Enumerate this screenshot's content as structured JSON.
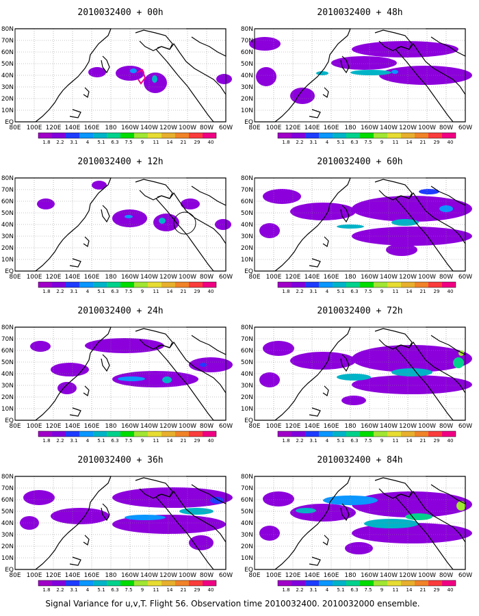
{
  "figure": {
    "caption": "Signal Variance for u,v,T. Flight 56. Observation time 2010032400. 2010032000 ensemble."
  },
  "colorbar": {
    "labels": [
      "1.8",
      "2.2",
      "3.1",
      "4",
      "5.1",
      "6.3",
      "7.5",
      "9",
      "11",
      "14",
      "21",
      "29",
      "40"
    ],
    "colors": [
      "#a000c8",
      "#8200dc",
      "#1e3cff",
      "#0a96ff",
      "#00b4c8",
      "#00d28c",
      "#00dc00",
      "#a0e632",
      "#e6dc32",
      "#e6af2d",
      "#f08228",
      "#fa3c3c",
      "#f00082"
    ]
  },
  "map": {
    "y_labels": [
      "80N",
      "70N",
      "60N",
      "50N",
      "40N",
      "30N",
      "20N",
      "10N",
      "EQ"
    ],
    "x_labels": [
      "80E",
      "100E",
      "120E",
      "140E",
      "160E",
      "180",
      "160W",
      "140W",
      "120W",
      "100W",
      "80W",
      "60W"
    ],
    "land_color": "#000000",
    "field_color": "#8c00dc"
  },
  "panels": [
    {
      "title": "2010032400 + 00h"
    },
    {
      "title": "2010032400 + 48h"
    },
    {
      "title": "2010032400 + 12h"
    },
    {
      "title": "2010032400 + 60h"
    },
    {
      "title": "2010032400 + 24h"
    },
    {
      "title": "2010032400 + 72h"
    },
    {
      "title": "2010032400 + 36h"
    },
    {
      "title": "2010032400 + 84h"
    }
  ]
}
